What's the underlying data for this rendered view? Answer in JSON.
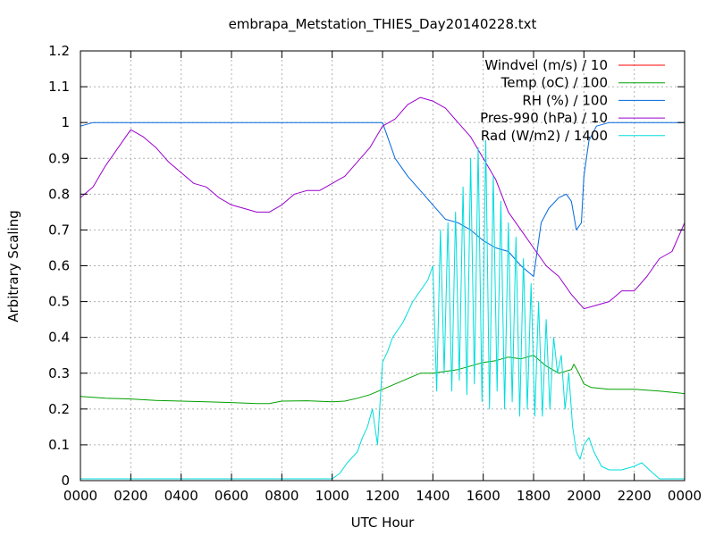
{
  "chart_data": {
    "type": "line",
    "title": "embrapa_Metstation_THIES_Day20140228.txt",
    "xlabel": "UTC Hour",
    "ylabel": "Arbitrary Scaling",
    "xlim": [
      0,
      24
    ],
    "ylim": [
      0,
      1.2
    ],
    "grid": true,
    "legend_position": "top-right",
    "x_tick_labels": [
      "0000",
      "0200",
      "0400",
      "0600",
      "0800",
      "1000",
      "1200",
      "1400",
      "1600",
      "1800",
      "2000",
      "2200",
      "0000"
    ],
    "y_tick_labels": [
      "0",
      "0.1",
      "0.2",
      "0.3",
      "0.4",
      "0.5",
      "0.6",
      "0.7",
      "0.8",
      "0.9",
      "1",
      "1.1",
      "1.2"
    ],
    "series": [
      {
        "name": "Windvel (m/s) / 10",
        "color": "#ff0000",
        "x": [],
        "y": []
      },
      {
        "name": "Temp (oC) / 100",
        "color": "#00a000",
        "x": [
          0,
          1,
          2,
          3,
          4,
          5,
          6,
          7,
          7.5,
          8,
          9,
          10,
          10.5,
          11,
          11.5,
          12,
          12.5,
          13,
          13.5,
          14,
          14.5,
          15,
          15.5,
          16,
          16.5,
          17,
          17.5,
          18,
          18.5,
          19,
          19.5,
          19.6,
          19.8,
          20,
          20.3,
          21,
          22,
          23,
          24
        ],
        "y": [
          0.235,
          0.23,
          0.228,
          0.224,
          0.222,
          0.22,
          0.218,
          0.215,
          0.215,
          0.222,
          0.223,
          0.22,
          0.222,
          0.23,
          0.24,
          0.255,
          0.27,
          0.285,
          0.3,
          0.3,
          0.305,
          0.31,
          0.32,
          0.33,
          0.335,
          0.345,
          0.34,
          0.35,
          0.32,
          0.3,
          0.31,
          0.325,
          0.3,
          0.27,
          0.26,
          0.255,
          0.255,
          0.25,
          0.243
        ]
      },
      {
        "name": "RH (%) / 100",
        "color": "#0066dd",
        "x": [
          0,
          0.5,
          1,
          2,
          4,
          6,
          8,
          10,
          11,
          12,
          12.5,
          13,
          13.5,
          14,
          14.5,
          15,
          15.5,
          16,
          16.5,
          17,
          17.5,
          18,
          18.3,
          18.6,
          19,
          19.3,
          19.5,
          19.7,
          19.9,
          20,
          20.2,
          20.5,
          21,
          22,
          23,
          24
        ],
        "y": [
          0.99,
          1.0,
          1.0,
          1.0,
          1.0,
          1.0,
          1.0,
          1.0,
          1.0,
          1.0,
          0.9,
          0.85,
          0.81,
          0.77,
          0.73,
          0.72,
          0.7,
          0.67,
          0.65,
          0.64,
          0.6,
          0.57,
          0.72,
          0.76,
          0.79,
          0.8,
          0.78,
          0.7,
          0.72,
          0.85,
          0.95,
          0.99,
          1.0,
          1.0,
          1.0,
          1.0
        ]
      },
      {
        "name": "Pres-990 (hPa) / 10",
        "color": "#9900cc",
        "x": [
          0,
          0.5,
          1,
          1.5,
          2,
          2.5,
          3,
          3.5,
          4,
          4.5,
          5,
          5.5,
          6,
          6.5,
          7,
          7.5,
          8,
          8.5,
          9,
          9.5,
          10,
          10.5,
          11,
          11.5,
          12,
          12.5,
          13,
          13.5,
          14,
          14.5,
          15,
          15.5,
          16,
          16.5,
          17,
          17.5,
          18,
          18.5,
          19,
          19.5,
          20,
          20.5,
          21,
          21.5,
          22,
          22.5,
          23,
          23.5,
          24
        ],
        "y": [
          0.79,
          0.82,
          0.88,
          0.93,
          0.98,
          0.96,
          0.93,
          0.89,
          0.86,
          0.83,
          0.82,
          0.79,
          0.77,
          0.76,
          0.75,
          0.75,
          0.77,
          0.8,
          0.81,
          0.81,
          0.83,
          0.85,
          0.89,
          0.93,
          0.99,
          1.01,
          1.05,
          1.07,
          1.06,
          1.04,
          1.0,
          0.96,
          0.9,
          0.84,
          0.75,
          0.7,
          0.65,
          0.6,
          0.57,
          0.52,
          0.48,
          0.49,
          0.5,
          0.53,
          0.53,
          0.57,
          0.62,
          0.64,
          0.72
        ]
      },
      {
        "name": "Rad (W/m2) / 1400",
        "color": "#00dddd",
        "x": [
          0,
          1,
          2,
          3,
          4,
          5,
          6,
          7,
          8,
          9,
          10,
          10.3,
          10.6,
          11,
          11.2,
          11.4,
          11.6,
          11.8,
          12,
          12.2,
          12.4,
          12.6,
          12.8,
          13,
          13.2,
          13.4,
          13.6,
          13.8,
          14,
          14.15,
          14.3,
          14.45,
          14.6,
          14.75,
          14.9,
          15.05,
          15.2,
          15.35,
          15.5,
          15.65,
          15.8,
          15.95,
          16.1,
          16.25,
          16.4,
          16.55,
          16.7,
          16.85,
          17,
          17.15,
          17.3,
          17.45,
          17.6,
          17.75,
          17.9,
          18.05,
          18.2,
          18.35,
          18.5,
          18.65,
          18.8,
          18.95,
          19.1,
          19.25,
          19.4,
          19.55,
          19.7,
          19.85,
          20,
          20.2,
          20.4,
          20.7,
          21,
          21.5,
          22,
          22.3,
          22.6,
          23,
          24
        ],
        "y": [
          0.005,
          0.005,
          0.005,
          0.005,
          0.005,
          0.005,
          0.005,
          0.005,
          0.005,
          0.005,
          0.005,
          0.02,
          0.05,
          0.08,
          0.12,
          0.15,
          0.2,
          0.1,
          0.33,
          0.36,
          0.4,
          0.42,
          0.44,
          0.47,
          0.5,
          0.52,
          0.54,
          0.56,
          0.6,
          0.25,
          0.7,
          0.3,
          0.72,
          0.25,
          0.75,
          0.28,
          0.82,
          0.24,
          0.9,
          0.27,
          0.93,
          0.22,
          0.95,
          0.2,
          0.85,
          0.25,
          0.78,
          0.2,
          0.72,
          0.22,
          0.68,
          0.18,
          0.62,
          0.2,
          0.55,
          0.18,
          0.5,
          0.18,
          0.45,
          0.2,
          0.4,
          0.3,
          0.35,
          0.2,
          0.3,
          0.15,
          0.08,
          0.06,
          0.1,
          0.12,
          0.08,
          0.04,
          0.03,
          0.03,
          0.04,
          0.05,
          0.03,
          0.005,
          0.005
        ]
      }
    ]
  }
}
